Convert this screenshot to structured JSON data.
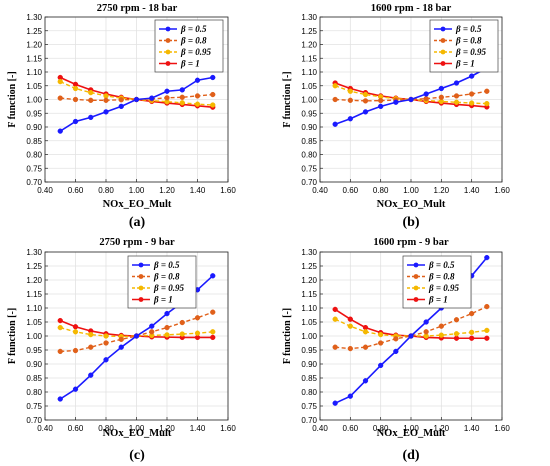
{
  "chart_data": [
    {
      "type": "line",
      "title": "2750 rpm - 18 bar",
      "xlabel": "NOx_EO_Mult",
      "ylabel": "F function [-]",
      "panel_label": "(a)",
      "xlim": [
        0.4,
        1.6
      ],
      "ylim": [
        0.7,
        1.3
      ],
      "xticks": [
        "0.40",
        "0.60",
        "0.80",
        "1.00",
        "1.20",
        "1.40",
        "1.60"
      ],
      "yticks": [
        "0.70",
        "0.75",
        "0.80",
        "0.85",
        "0.90",
        "0.95",
        "1.00",
        "1.05",
        "1.10",
        "1.15",
        "1.20",
        "1.25",
        "1.30"
      ],
      "legend_position": "top-right",
      "x": [
        0.5,
        0.6,
        0.7,
        0.8,
        0.9,
        1.0,
        1.1,
        1.2,
        1.3,
        1.4,
        1.5
      ],
      "series": [
        {
          "name": "β = 0.5",
          "color": "#1a1aff",
          "style": "solid",
          "values": [
            0.885,
            0.92,
            0.935,
            0.955,
            0.975,
            1.0,
            1.005,
            1.03,
            1.035,
            1.07,
            1.08
          ]
        },
        {
          "name": "β = 0.8",
          "color": "#e0601a",
          "style": "dashed",
          "values": [
            1.005,
            1.0,
            0.997,
            0.997,
            0.999,
            1.0,
            1.002,
            1.006,
            1.008,
            1.013,
            1.018
          ]
        },
        {
          "name": "β = 0.95",
          "color": "#f5b800",
          "style": "dashed",
          "values": [
            1.065,
            1.04,
            1.025,
            1.013,
            1.005,
            1.0,
            0.996,
            0.992,
            0.988,
            0.983,
            0.98
          ]
        },
        {
          "name": "β = 1",
          "color": "#ee1111",
          "style": "solid",
          "values": [
            1.08,
            1.055,
            1.035,
            1.02,
            1.008,
            1.0,
            0.993,
            0.987,
            0.982,
            0.977,
            0.972
          ]
        }
      ]
    },
    {
      "type": "line",
      "title": "1600 rpm - 18 bar",
      "xlabel": "NOx_EO_Mult",
      "ylabel": "F function [-]",
      "panel_label": "(b)",
      "xlim": [
        0.4,
        1.6
      ],
      "ylim": [
        0.7,
        1.3
      ],
      "xticks": [
        "0.40",
        "0.60",
        "0.80",
        "1.00",
        "1.20",
        "1.40",
        "1.60"
      ],
      "yticks": [
        "0.70",
        "0.75",
        "0.80",
        "0.85",
        "0.90",
        "0.95",
        "1.00",
        "1.05",
        "1.10",
        "1.15",
        "1.20",
        "1.25",
        "1.30"
      ],
      "legend_position": "top-right",
      "x": [
        0.5,
        0.6,
        0.7,
        0.8,
        0.9,
        1.0,
        1.1,
        1.2,
        1.3,
        1.4,
        1.5
      ],
      "series": [
        {
          "name": "β = 0.5",
          "color": "#1a1aff",
          "style": "solid",
          "values": [
            0.91,
            0.93,
            0.955,
            0.975,
            0.99,
            1.0,
            1.02,
            1.04,
            1.06,
            1.085,
            1.115
          ]
        },
        {
          "name": "β = 0.8",
          "color": "#e0601a",
          "style": "dashed",
          "values": [
            1.0,
            0.997,
            0.995,
            0.996,
            0.998,
            1.0,
            1.003,
            1.008,
            1.013,
            1.02,
            1.03
          ]
        },
        {
          "name": "β = 0.95",
          "color": "#f5b800",
          "style": "dashed",
          "values": [
            1.05,
            1.03,
            1.018,
            1.01,
            1.003,
            1.0,
            0.996,
            0.993,
            0.99,
            0.987,
            0.985
          ]
        },
        {
          "name": "β = 1",
          "color": "#ee1111",
          "style": "solid",
          "values": [
            1.06,
            1.04,
            1.025,
            1.013,
            1.005,
            1.0,
            0.993,
            0.987,
            0.982,
            0.978,
            0.973
          ]
        }
      ]
    },
    {
      "type": "line",
      "title": "2750 rpm - 9 bar",
      "xlabel": "NOx_EO_Mult",
      "ylabel": "F function [-]",
      "panel_label": "(c)",
      "xlim": [
        0.4,
        1.6
      ],
      "ylim": [
        0.7,
        1.3
      ],
      "xticks": [
        "0.40",
        "0.60",
        "0.80",
        "1.00",
        "1.20",
        "1.40",
        "1.60"
      ],
      "yticks": [
        "0.70",
        "0.75",
        "0.80",
        "0.85",
        "0.90",
        "0.95",
        "1.00",
        "1.05",
        "1.10",
        "1.15",
        "1.20",
        "1.25",
        "1.30"
      ],
      "legend_position": "top-center",
      "x": [
        0.5,
        0.6,
        0.7,
        0.8,
        0.9,
        1.0,
        1.1,
        1.2,
        1.3,
        1.4,
        1.5
      ],
      "series": [
        {
          "name": "β = 0.5",
          "color": "#1a1aff",
          "style": "solid",
          "values": [
            0.775,
            0.81,
            0.86,
            0.915,
            0.96,
            1.0,
            1.035,
            1.08,
            1.12,
            1.165,
            1.215
          ]
        },
        {
          "name": "β = 0.8",
          "color": "#e0601a",
          "style": "dashed",
          "values": [
            0.945,
            0.948,
            0.96,
            0.975,
            0.988,
            1.0,
            1.015,
            1.03,
            1.048,
            1.065,
            1.085
          ]
        },
        {
          "name": "β = 0.95",
          "color": "#f5b800",
          "style": "dashed",
          "values": [
            1.03,
            1.015,
            1.005,
            1.0,
            0.998,
            1.0,
            1.002,
            1.004,
            1.007,
            1.01,
            1.015
          ]
        },
        {
          "name": "β = 1",
          "color": "#ee1111",
          "style": "solid",
          "values": [
            1.055,
            1.033,
            1.018,
            1.008,
            1.002,
            1.0,
            0.997,
            0.996,
            0.995,
            0.995,
            0.995
          ]
        }
      ]
    },
    {
      "type": "line",
      "title": "1600 rpm - 9 bar",
      "xlabel": "NOx_EO_Mult",
      "ylabel": "F function [-]",
      "panel_label": "(d)",
      "xlim": [
        0.4,
        1.6
      ],
      "ylim": [
        0.7,
        1.3
      ],
      "xticks": [
        "0.40",
        "0.60",
        "0.80",
        "1.00",
        "1.20",
        "1.40",
        "1.60"
      ],
      "yticks": [
        "0.70",
        "0.75",
        "0.80",
        "0.85",
        "0.90",
        "0.95",
        "1.00",
        "1.05",
        "1.10",
        "1.15",
        "1.20",
        "1.25",
        "1.30"
      ],
      "legend_position": "top-center",
      "x": [
        0.5,
        0.6,
        0.7,
        0.8,
        0.9,
        1.0,
        1.1,
        1.2,
        1.3,
        1.4,
        1.5
      ],
      "series": [
        {
          "name": "β = 0.5",
          "color": "#1a1aff",
          "style": "solid",
          "values": [
            0.76,
            0.785,
            0.84,
            0.895,
            0.945,
            1.0,
            1.05,
            1.1,
            1.155,
            1.215,
            1.28
          ]
        },
        {
          "name": "β = 0.8",
          "color": "#e0601a",
          "style": "dashed",
          "values": [
            0.96,
            0.955,
            0.96,
            0.975,
            0.99,
            1.0,
            1.015,
            1.035,
            1.058,
            1.08,
            1.105
          ]
        },
        {
          "name": "β = 0.95",
          "color": "#f5b800",
          "style": "dashed",
          "values": [
            1.06,
            1.035,
            1.015,
            1.005,
            1.0,
            1.0,
            1.0,
            1.003,
            1.008,
            1.013,
            1.02
          ]
        },
        {
          "name": "β = 1",
          "color": "#ee1111",
          "style": "solid",
          "values": [
            1.095,
            1.06,
            1.03,
            1.012,
            1.003,
            1.0,
            0.995,
            0.993,
            0.992,
            0.992,
            0.992
          ]
        }
      ]
    }
  ]
}
